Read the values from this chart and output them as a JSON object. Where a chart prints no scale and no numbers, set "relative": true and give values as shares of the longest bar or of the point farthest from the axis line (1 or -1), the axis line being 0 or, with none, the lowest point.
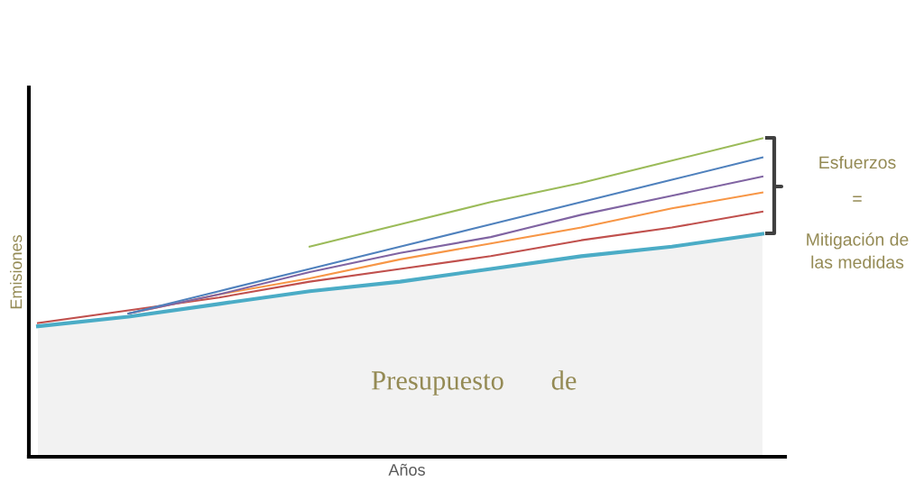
{
  "chart_data": {
    "type": "line",
    "relative": true,
    "xlabel": "Años",
    "ylabel": "Emisiones",
    "categories": [
      null,
      null,
      null,
      null,
      null,
      null,
      null,
      null,
      null
    ],
    "series": [
      {
        "color": "#c0504d",
        "values": [
          0.42,
          0.46,
          0.5,
          0.55,
          0.59,
          0.63,
          0.68,
          0.72,
          0.77
        ]
      },
      {
        "color": "#f79646",
        "values": [
          null,
          0.45,
          0.51,
          0.56,
          0.62,
          0.67,
          0.72,
          0.78,
          0.83
        ]
      },
      {
        "color": "#8064a2",
        "values": [
          null,
          0.45,
          0.51,
          0.58,
          0.64,
          0.69,
          0.76,
          0.82,
          0.88
        ]
      },
      {
        "color": "#4f81bd",
        "values": [
          null,
          0.45,
          0.52,
          0.59,
          0.66,
          0.73,
          0.8,
          0.87,
          0.94
        ]
      },
      {
        "color": "#9bbb59",
        "values": [
          null,
          null,
          null,
          0.66,
          0.73,
          0.8,
          0.86,
          0.93,
          1.0
        ]
      },
      {
        "type": "area",
        "color": "#4bacc6",
        "values": [
          0.41,
          0.44,
          0.48,
          0.52,
          0.55,
          0.59,
          0.63,
          0.66,
          0.7
        ]
      }
    ],
    "annotations": [
      "Presupuesto",
      "de",
      "Esfuerzos",
      "=",
      "Mitigación de\nlas medidas"
    ],
    "grid": false,
    "legend": false
  }
}
